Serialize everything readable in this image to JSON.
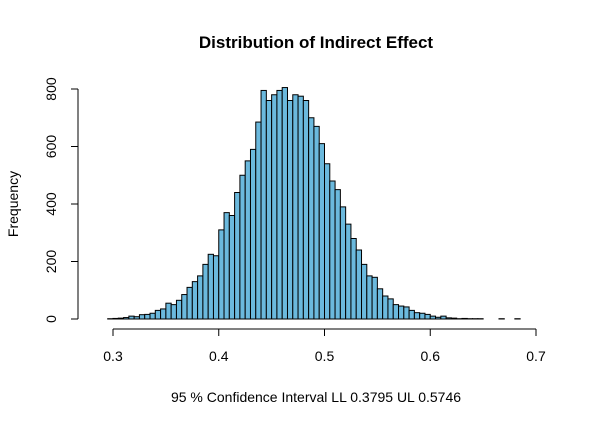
{
  "chart_data": {
    "type": "bar",
    "title": "Distribution of Indirect Effect",
    "xlabel": "95 % Confidence Interval  LL 0.3795   UL 0.5746",
    "ylabel": "Frequency",
    "xlim": [
      0.28,
      0.7
    ],
    "ylim": [
      0,
      800
    ],
    "xticks": [
      "0.3",
      "0.4",
      "0.5",
      "0.6",
      "0.7"
    ],
    "yticks": [
      "0",
      "200",
      "400",
      "600",
      "800"
    ],
    "bin_start": 0.28,
    "bin_width": 0.005,
    "values": [
      0,
      0,
      0,
      1,
      2,
      3,
      5,
      10,
      8,
      15,
      16,
      20,
      30,
      35,
      55,
      50,
      65,
      85,
      110,
      130,
      150,
      190,
      225,
      220,
      310,
      370,
      360,
      440,
      500,
      550,
      590,
      685,
      795,
      760,
      780,
      795,
      805,
      760,
      780,
      775,
      760,
      700,
      670,
      610,
      540,
      480,
      450,
      390,
      330,
      280,
      240,
      190,
      150,
      145,
      105,
      80,
      70,
      50,
      45,
      42,
      30,
      22,
      20,
      16,
      10,
      6,
      10,
      4,
      3,
      1,
      2,
      1,
      1,
      1,
      0,
      0,
      0,
      1,
      0,
      0,
      1,
      0,
      0,
      0
    ]
  }
}
